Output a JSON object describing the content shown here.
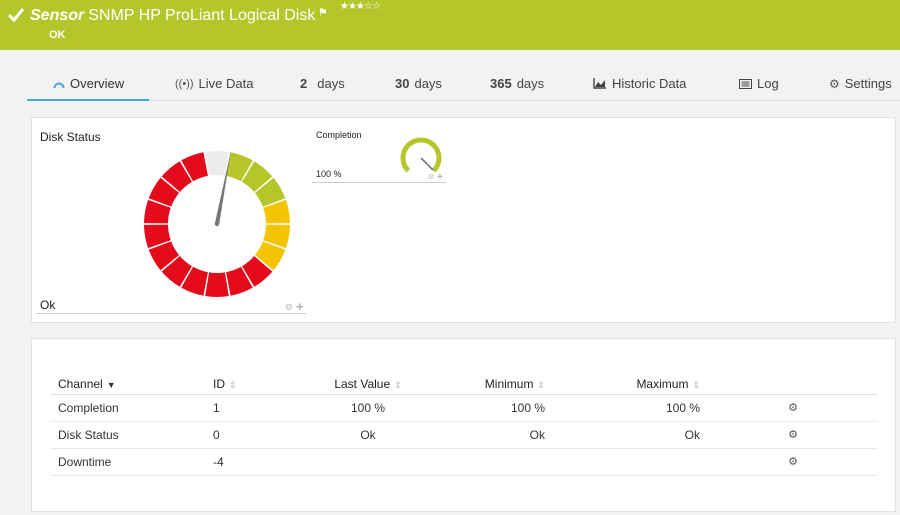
{
  "header": {
    "kind": "Sensor",
    "title": "SNMP HP ProLiant Logical Disk",
    "status": "OK",
    "rating": "★★★☆☆"
  },
  "tabs": [
    {
      "label": "Overview",
      "icon": "gauge-icon"
    },
    {
      "label": "Live Data",
      "icon": "broadcast-icon"
    },
    {
      "num": "2",
      "unit": "days"
    },
    {
      "num": "30",
      "unit": "days"
    },
    {
      "num": "365",
      "unit": "days"
    },
    {
      "label": "Historic Data",
      "icon": "area-chart-icon"
    },
    {
      "label": "Log",
      "icon": "list-icon"
    },
    {
      "label": "Settings",
      "icon": "gear-icon"
    }
  ],
  "gauge": {
    "title": "Disk Status",
    "value_text": "Ok",
    "segments": [
      "#ececec",
      "#b5c62b",
      "#b5c62b",
      "#b5c62b",
      "#f5c400",
      "#f5c400",
      "#f5c400",
      "#e30a1b",
      "#e30a1b",
      "#e30a1b",
      "#e30a1b",
      "#e30a1b",
      "#e30a1b",
      "#e30a1b",
      "#e30a1b",
      "#e30a1b",
      "#e30a1b",
      "#e30a1b"
    ],
    "needle_level": 0.03
  },
  "mini_gauge": {
    "title": "Completion",
    "value_text": "100 %",
    "level": 1.0,
    "color": "#b5c62b"
  },
  "table": {
    "headers": {
      "channel": "Channel",
      "id": "ID",
      "last": "Last Value",
      "min": "Minimum",
      "max": "Maximum"
    },
    "rows": [
      {
        "channel": "Completion",
        "id": "1",
        "last": "100 %",
        "min": "100 %",
        "max": "100 %"
      },
      {
        "channel": "Disk Status",
        "id": "0",
        "last": "Ok",
        "min": "Ok",
        "max": "Ok"
      },
      {
        "channel": "Downtime",
        "id": "-4",
        "last": "",
        "min": "",
        "max": ""
      }
    ]
  }
}
